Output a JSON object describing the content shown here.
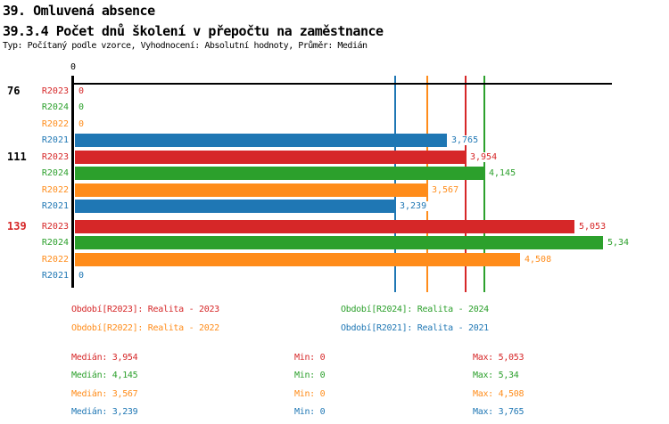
{
  "header": {
    "title_line1": "39. Omluvená absence",
    "title_line2": "39.3.4 Počet dnů školení v přepočtu na zaměstnance",
    "subtitle": "Typ: Počítaný podle vzorce, Vyhodnocení: Absolutní hodnoty, Průměr: Medián"
  },
  "colors": {
    "R2023": "#d62728",
    "R2024": "#2ca02c",
    "R2022": "#ff8c1a",
    "R2021": "#1f77b4",
    "axis": "#000000",
    "group_label_default": "#000000",
    "group_label_highlight": "#d62728"
  },
  "chart_data": {
    "type": "bar",
    "orientation": "horizontal",
    "title": "39.3.4 Počet dnů školení v přepočtu na zaměstnance",
    "x_axis": {
      "zero_label": "0",
      "min": 0,
      "max": 5.45,
      "gridlines": false
    },
    "series_order": [
      "R2023",
      "R2024",
      "R2022",
      "R2021"
    ],
    "groups": [
      {
        "label": "76",
        "highlighted": false,
        "bars": [
          {
            "series": "R2023",
            "value": 0,
            "label": "0"
          },
          {
            "series": "R2024",
            "value": 0,
            "label": "0"
          },
          {
            "series": "R2022",
            "value": 0,
            "label": "0"
          },
          {
            "series": "R2021",
            "value": 3.765,
            "label": "3,765"
          }
        ]
      },
      {
        "label": "111",
        "highlighted": false,
        "bars": [
          {
            "series": "R2023",
            "value": 3.954,
            "label": "3,954"
          },
          {
            "series": "R2024",
            "value": 4.145,
            "label": "4,145"
          },
          {
            "series": "R2022",
            "value": 3.567,
            "label": "3,567"
          },
          {
            "series": "R2021",
            "value": 3.239,
            "label": "3,239"
          }
        ]
      },
      {
        "label": "139",
        "highlighted": true,
        "bars": [
          {
            "series": "R2023",
            "value": 5.053,
            "label": "5,053"
          },
          {
            "series": "R2024",
            "value": 5.34,
            "label": "5,34"
          },
          {
            "series": "R2022",
            "value": 4.508,
            "label": "4,508"
          },
          {
            "series": "R2021",
            "value": 0,
            "label": "0"
          }
        ]
      }
    ],
    "median_lines": [
      {
        "series": "R2023",
        "value": 3.954
      },
      {
        "series": "R2024",
        "value": 4.145
      },
      {
        "series": "R2022",
        "value": 3.567
      },
      {
        "series": "R2021",
        "value": 3.239
      }
    ]
  },
  "legend": {
    "items": [
      {
        "series": "R2023",
        "label": "Období[R2023]: Realita - 2023"
      },
      {
        "series": "R2024",
        "label": "Období[R2024]: Realita - 2024"
      },
      {
        "series": "R2022",
        "label": "Období[R2022]: Realita - 2022"
      },
      {
        "series": "R2021",
        "label": "Období[R2021]: Realita - 2021"
      }
    ]
  },
  "stats": {
    "rows": [
      {
        "series": "R2023",
        "median": "Medián: 3,954",
        "min": "Min: 0",
        "max": "Max: 5,053"
      },
      {
        "series": "R2024",
        "median": "Medián: 4,145",
        "min": "Min: 0",
        "max": "Max: 5,34"
      },
      {
        "series": "R2022",
        "median": "Medián: 3,567",
        "min": "Min: 0",
        "max": "Max: 4,508"
      },
      {
        "series": "R2021",
        "median": "Medián: 3,239",
        "min": "Min: 0",
        "max": "Max: 3,765"
      }
    ]
  }
}
